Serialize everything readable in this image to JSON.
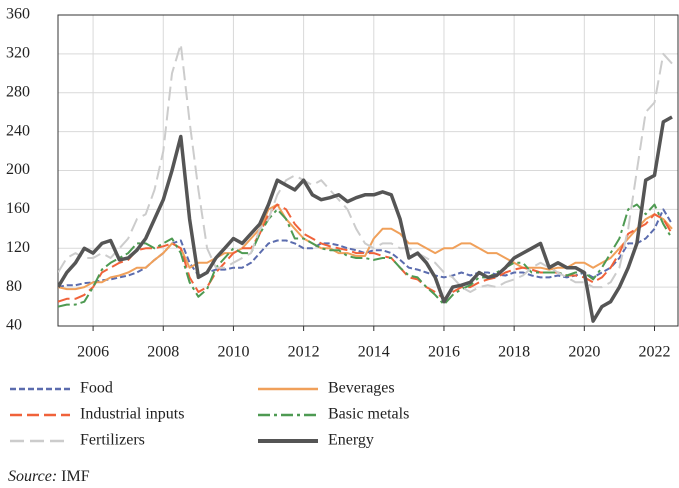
{
  "chart_data": {
    "type": "line",
    "x": [
      2005,
      2005.25,
      2005.5,
      2005.75,
      2006,
      2006.25,
      2006.5,
      2006.75,
      2007,
      2007.25,
      2007.5,
      2007.75,
      2008,
      2008.25,
      2008.5,
      2008.75,
      2009,
      2009.25,
      2009.5,
      2009.75,
      2010,
      2010.25,
      2010.5,
      2010.75,
      2011,
      2011.25,
      2011.5,
      2011.75,
      2012,
      2012.25,
      2012.5,
      2012.75,
      2013,
      2013.25,
      2013.5,
      2013.75,
      2014,
      2014.25,
      2014.5,
      2014.75,
      2015,
      2015.25,
      2015.5,
      2015.75,
      2016,
      2016.25,
      2016.5,
      2016.75,
      2017,
      2017.25,
      2017.5,
      2017.75,
      2018,
      2018.25,
      2018.5,
      2018.75,
      2019,
      2019.25,
      2019.5,
      2019.75,
      2020,
      2020.25,
      2020.5,
      2020.75,
      2021,
      2021.25,
      2021.5,
      2021.75,
      2022,
      2022.25,
      2022.5
    ],
    "series": [
      {
        "name": "Food",
        "color": "#5b6cae",
        "dash": "6 3",
        "width": 2,
        "values": [
          80,
          82,
          82,
          84,
          85,
          87,
          88,
          90,
          92,
          95,
          100,
          108,
          115,
          125,
          128,
          105,
          92,
          95,
          98,
          98,
          100,
          100,
          105,
          115,
          125,
          128,
          128,
          125,
          120,
          120,
          125,
          125,
          123,
          120,
          118,
          115,
          118,
          118,
          115,
          108,
          100,
          98,
          95,
          92,
          90,
          92,
          95,
          92,
          95,
          95,
          93,
          92,
          95,
          95,
          92,
          90,
          90,
          92,
          90,
          92,
          95,
          90,
          95,
          100,
          110,
          125,
          125,
          130,
          140,
          160,
          145
        ]
      },
      {
        "name": "Beverages",
        "color": "#f0a05a",
        "dash": "",
        "width": 2,
        "values": [
          80,
          78,
          78,
          80,
          85,
          85,
          90,
          92,
          95,
          100,
          100,
          108,
          115,
          125,
          120,
          100,
          105,
          105,
          110,
          115,
          115,
          120,
          130,
          140,
          160,
          165,
          150,
          140,
          130,
          125,
          120,
          120,
          115,
          115,
          112,
          112,
          130,
          140,
          140,
          135,
          125,
          125,
          120,
          115,
          120,
          120,
          125,
          125,
          120,
          115,
          115,
          110,
          105,
          100,
          100,
          100,
          98,
          100,
          100,
          105,
          105,
          100,
          105,
          110,
          120,
          130,
          140,
          150,
          155,
          150,
          140
        ]
      },
      {
        "name": "Industrial inputs",
        "color": "#f0623a",
        "dash": "12 5",
        "width": 2,
        "values": [
          65,
          68,
          68,
          72,
          80,
          95,
          100,
          105,
          108,
          118,
          120,
          120,
          122,
          125,
          120,
          90,
          75,
          80,
          95,
          105,
          115,
          120,
          120,
          135,
          155,
          165,
          160,
          145,
          135,
          130,
          125,
          122,
          120,
          118,
          115,
          115,
          115,
          112,
          110,
          100,
          90,
          88,
          80,
          75,
          68,
          75,
          80,
          80,
          85,
          88,
          90,
          95,
          98,
          100,
          98,
          95,
          95,
          95,
          92,
          92,
          90,
          85,
          90,
          100,
          115,
          135,
          140,
          145,
          155,
          150,
          135
        ]
      },
      {
        "name": "Basic metals",
        "color": "#4e9a52",
        "dash": "12 4 3 4",
        "width": 2,
        "values": [
          60,
          62,
          62,
          65,
          80,
          98,
          105,
          110,
          115,
          125,
          125,
          120,
          125,
          130,
          115,
          85,
          70,
          78,
          100,
          110,
          120,
          115,
          115,
          135,
          150,
          160,
          150,
          130,
          130,
          125,
          120,
          118,
          118,
          112,
          110,
          110,
          108,
          110,
          110,
          100,
          92,
          90,
          80,
          72,
          62,
          72,
          78,
          82,
          90,
          90,
          95,
          100,
          105,
          105,
          95,
          95,
          95,
          95,
          92,
          95,
          95,
          88,
          100,
          115,
          130,
          160,
          165,
          155,
          165,
          145,
          130
        ]
      },
      {
        "name": "Fertilizers",
        "color": "#cccccc",
        "dash": "14 6",
        "width": 2,
        "values": [
          95,
          110,
          115,
          110,
          110,
          115,
          110,
          120,
          130,
          150,
          155,
          180,
          220,
          300,
          330,
          250,
          180,
          120,
          100,
          100,
          105,
          110,
          115,
          140,
          150,
          175,
          190,
          195,
          190,
          185,
          190,
          180,
          170,
          160,
          140,
          125,
          120,
          125,
          125,
          120,
          120,
          115,
          110,
          105,
          95,
          90,
          80,
          75,
          80,
          82,
          80,
          85,
          88,
          92,
          100,
          105,
          100,
          95,
          90,
          85,
          85,
          80,
          80,
          85,
          100,
          140,
          200,
          260,
          270,
          320,
          310
        ]
      },
      {
        "name": "Energy",
        "color": "#555555",
        "dash": "",
        "width": 3.5,
        "values": [
          80,
          95,
          105,
          120,
          115,
          125,
          128,
          108,
          110,
          118,
          130,
          150,
          170,
          200,
          235,
          150,
          90,
          95,
          110,
          120,
          130,
          125,
          135,
          145,
          165,
          190,
          185,
          180,
          190,
          175,
          170,
          172,
          175,
          168,
          172,
          175,
          175,
          178,
          175,
          150,
          110,
          115,
          105,
          90,
          65,
          80,
          82,
          85,
          95,
          90,
          92,
          100,
          110,
          115,
          120,
          125,
          100,
          105,
          100,
          100,
          95,
          45,
          60,
          65,
          80,
          100,
          125,
          190,
          195,
          250,
          255
        ]
      }
    ],
    "xlim": [
      2005,
      2022.67
    ],
    "ylim": [
      40,
      360
    ],
    "xticks": [
      2006,
      2008,
      2010,
      2012,
      2014,
      2016,
      2018,
      2020,
      2022
    ],
    "yticks": [
      40,
      80,
      120,
      160,
      200,
      240,
      280,
      320,
      360
    ],
    "grid": true,
    "source_label": "Source:",
    "source": "IMF"
  }
}
